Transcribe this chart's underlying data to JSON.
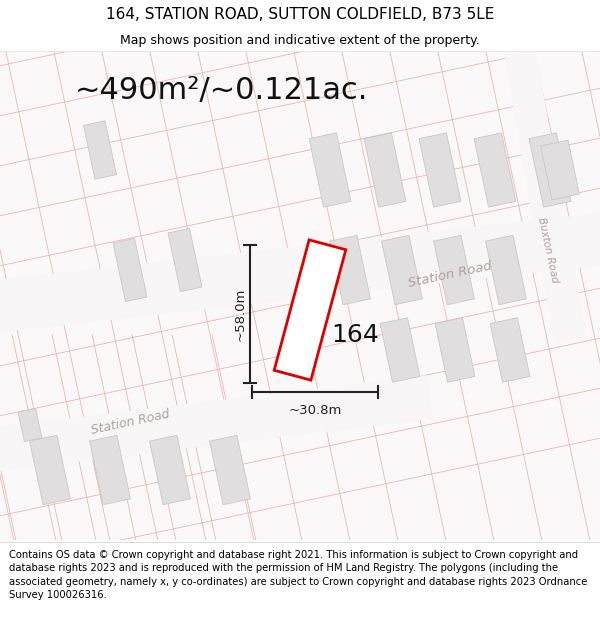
{
  "title": "164, STATION ROAD, SUTTON COLDFIELD, B73 5LE",
  "subtitle": "Map shows position and indicative extent of the property.",
  "area_label": "~490m²/~0.121ac.",
  "plot_number": "164",
  "dim_height": "~58.0m",
  "dim_width": "~30.8m",
  "footer": "Contains OS data © Crown copyright and database right 2021. This information is subject to Crown copyright and database rights 2023 and is reproduced with the permission of HM Land Registry. The polygons (including the associated geometry, namely x, y co-ordinates) are subject to Crown copyright and database rights 2023 Ordnance Survey 100026316.",
  "map_bg": "#faf8f8",
  "road_line_color": "#e8b8b8",
  "road_fill_color": "#f0e8e8",
  "building_fill": "#e0dede",
  "building_edge": "#c8c0c0",
  "road_label_color": "#b8a8a8",
  "plot_outline_color": "#dd0000",
  "plot_fill_color": "#ffffff",
  "dim_line_color": "#222222",
  "title_fontsize": 11,
  "subtitle_fontsize": 9,
  "area_fontsize": 22,
  "plot_num_fontsize": 18,
  "dim_fontsize": 10,
  "footer_fontsize": 7.2
}
